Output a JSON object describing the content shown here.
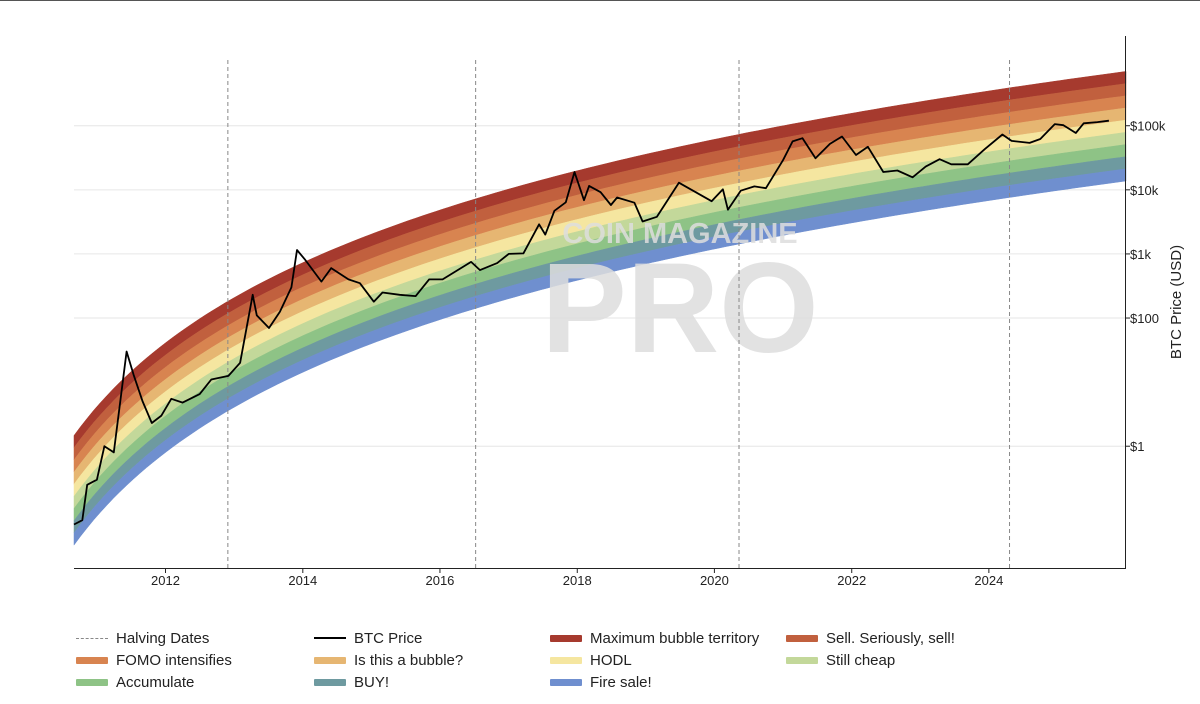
{
  "chart_data": {
    "type": "line",
    "title": "",
    "xlabel": "",
    "ylabel": "BTC Price (USD)",
    "yscale": "log",
    "x_range": [
      "2010-09-01",
      "2025-12-31"
    ],
    "y_range_log10": [
      -1.9,
      6.4
    ],
    "x_ticks": [
      "2012",
      "2014",
      "2016",
      "2018",
      "2020",
      "2022",
      "2024"
    ],
    "y_ticks": [
      {
        "value": 1,
        "label": "$1"
      },
      {
        "value": 100,
        "label": "$100"
      },
      {
        "value": 1000,
        "label": "$1k"
      },
      {
        "value": 10000,
        "label": "$10k"
      },
      {
        "value": 100000,
        "label": "$100k"
      }
    ],
    "halving_dates": [
      "2012-11-28",
      "2016-07-09",
      "2020-05-11",
      "2024-04-20"
    ],
    "rainbow_bands": [
      {
        "name": "Maximum bubble territory",
        "color": "#a63a2e"
      },
      {
        "name": "Sell. Seriously, sell!",
        "color": "#c1603e"
      },
      {
        "name": "FOMO intensifies",
        "color": "#d88450"
      },
      {
        "name": "Is this a bubble?",
        "color": "#e6b672"
      },
      {
        "name": "HODL",
        "color": "#f5e6a0"
      },
      {
        "name": "Still cheap",
        "color": "#c3d89a"
      },
      {
        "name": "Accumulate",
        "color": "#8ec386"
      },
      {
        "name": "BUY!",
        "color": "#6e9aa0"
      },
      {
        "name": "Fire sale!",
        "color": "#6f8fcf"
      }
    ],
    "series": [
      {
        "name": "BTC Price",
        "color": "#000000",
        "x": [
          "2010-09-01",
          "2010-10-15",
          "2010-11-10",
          "2011-01-01",
          "2011-02-10",
          "2011-04-01",
          "2011-06-08",
          "2011-07-15",
          "2011-09-01",
          "2011-10-20",
          "2011-12-10",
          "2012-02-01",
          "2012-04-01",
          "2012-07-01",
          "2012-09-01",
          "2012-12-01",
          "2013-02-01",
          "2013-04-09",
          "2013-05-01",
          "2013-07-05",
          "2013-09-01",
          "2013-11-01",
          "2013-12-01",
          "2014-01-15",
          "2014-04-10",
          "2014-06-01",
          "2014-09-01",
          "2014-11-01",
          "2015-01-14",
          "2015-03-01",
          "2015-06-01",
          "2015-08-25",
          "2015-11-04",
          "2016-01-15",
          "2016-06-15",
          "2016-08-01",
          "2016-11-01",
          "2017-01-01",
          "2017-03-20",
          "2017-06-12",
          "2017-07-15",
          "2017-09-01",
          "2017-11-01",
          "2017-12-17",
          "2018-02-06",
          "2018-03-05",
          "2018-05-05",
          "2018-06-29",
          "2018-08-01",
          "2018-11-01",
          "2018-12-15",
          "2019-03-01",
          "2019-06-26",
          "2019-09-01",
          "2019-12-17",
          "2020-02-15",
          "2020-03-13",
          "2020-05-20",
          "2020-08-01",
          "2020-10-01",
          "2020-12-31",
          "2021-02-20",
          "2021-04-14",
          "2021-06-22",
          "2021-09-07",
          "2021-11-10",
          "2022-01-24",
          "2022-03-28",
          "2022-06-18",
          "2022-09-01",
          "2022-11-21",
          "2023-01-30",
          "2023-04-14",
          "2023-06-15",
          "2023-09-11",
          "2023-12-10",
          "2024-03-13",
          "2024-05-01",
          "2024-08-05",
          "2024-10-01",
          "2024-12-17",
          "2025-02-01",
          "2025-04-08",
          "2025-05-20",
          "2025-08-01",
          "2025-10-01"
        ],
        "values": [
          0.06,
          0.07,
          0.25,
          0.3,
          1,
          0.8,
          30,
          13,
          5,
          2.3,
          3,
          5.5,
          4.8,
          6.5,
          11,
          12.5,
          20,
          230,
          110,
          70,
          125,
          300,
          1150,
          800,
          370,
          600,
          400,
          350,
          180,
          250,
          230,
          220,
          400,
          400,
          750,
          560,
          720,
          1000,
          1020,
          2900,
          2000,
          4700,
          6400,
          19000,
          6900,
          11500,
          9200,
          5800,
          7600,
          6300,
          3200,
          3800,
          12900,
          10000,
          6640,
          10200,
          4900,
          9700,
          11300,
          10600,
          29000,
          57000,
          64000,
          31000,
          52000,
          68000,
          35000,
          47000,
          19000,
          20000,
          15700,
          23000,
          30000,
          25000,
          25000,
          43000,
          73000,
          58000,
          54000,
          62000,
          106000,
          102000,
          77000,
          109000,
          114000,
          120000
        ]
      }
    ]
  },
  "legend": {
    "items": [
      {
        "label": "Halving Dates",
        "kind": "dashed",
        "color": "#888888"
      },
      {
        "label": "BTC Price",
        "kind": "line",
        "color": "#000000"
      },
      {
        "label": "Maximum bubble territory",
        "kind": "band",
        "color": "#a63a2e"
      },
      {
        "label": "Sell. Seriously, sell!",
        "kind": "band",
        "color": "#c1603e"
      },
      {
        "label": "FOMO intensifies",
        "kind": "band",
        "color": "#d88450"
      },
      {
        "label": "Is this a bubble?",
        "kind": "band",
        "color": "#e6b672"
      },
      {
        "label": "HODL",
        "kind": "band",
        "color": "#f5e6a0"
      },
      {
        "label": "Still cheap",
        "kind": "band",
        "color": "#c3d89a"
      },
      {
        "label": "Accumulate",
        "kind": "band",
        "color": "#8ec386"
      },
      {
        "label": "BUY!",
        "kind": "band",
        "color": "#6e9aa0"
      },
      {
        "label": "Fire sale!",
        "kind": "band",
        "color": "#6f8fcf"
      }
    ]
  },
  "watermark": {
    "line1": "COIN MAGAZINE",
    "line2": "PRO"
  }
}
